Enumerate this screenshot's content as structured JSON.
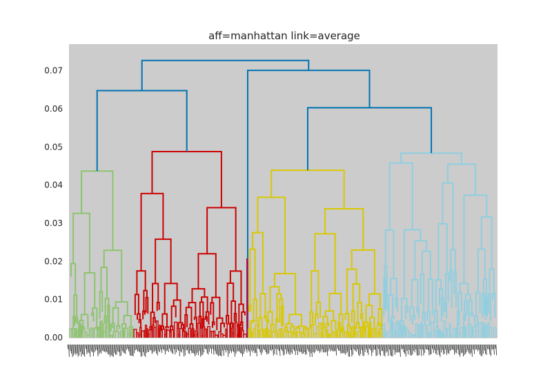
{
  "chart_data": {
    "type": "dendrogram",
    "title": "aff=manhattan link=average",
    "xlabel": "",
    "ylabel": "",
    "ylim": [
      0,
      0.077
    ],
    "yticks": [
      "0.00",
      "0.01",
      "0.02",
      "0.03",
      "0.04",
      "0.05",
      "0.06",
      "0.07"
    ],
    "ytick_values": [
      0,
      0.01,
      0.02,
      0.03,
      0.04,
      0.05,
      0.06,
      0.07
    ],
    "grid": false,
    "background": "#cccccc",
    "colors": {
      "above_threshold": "#0072b2",
      "cluster_1": "#8dc36f",
      "cluster_2": "#cc0000",
      "cluster_3": "#9b1d5a",
      "cluster_4": "#d9c800",
      "cluster_5": "#8ecfe0"
    },
    "top_merges": [
      {
        "height": 0.0727,
        "children": [
          "merge_A",
          "merge_B"
        ]
      },
      {
        "height": 0.0648,
        "children": [
          "cluster_1",
          "cluster_2"
        ]
      },
      {
        "height": 0.0701,
        "children": [
          "cluster_3",
          "merge_C"
        ]
      },
      {
        "height": 0.0603,
        "children": [
          "cluster_4",
          "cluster_5"
        ]
      }
    ],
    "clusters": [
      {
        "name": "cluster_1",
        "color": "#8dc36f",
        "root_height": 0.0437,
        "sub_merges": [
          0.0326,
          0.0229,
          0.0212,
          0.0075,
          0.005
        ]
      },
      {
        "name": "cluster_2",
        "color": "#cc0000",
        "root_height": 0.0488,
        "sub_merges": [
          0.0378,
          0.0341,
          0.0317,
          0.0271,
          0.0232,
          0.0223,
          0.0131,
          0.0088,
          0.006
        ]
      },
      {
        "name": "cluster_3",
        "color": "#9b1d5a",
        "root_height": 0.0208,
        "sub_merges": []
      },
      {
        "name": "cluster_4",
        "color": "#d9c800",
        "root_height": 0.0439,
        "sub_merges": [
          0.0368,
          0.0338,
          0.0313,
          0.0229,
          0.0213,
          0.0187,
          0.0147,
          0.0082,
          0.005
        ]
      },
      {
        "name": "cluster_5",
        "color": "#8ecfe0",
        "root_height": 0.0484,
        "sub_merges": [
          0.0458,
          0.0455,
          0.0392,
          0.0381,
          0.0354,
          0.0286,
          0.0255,
          0.0158,
          0.0071,
          0.0052
        ]
      }
    ]
  }
}
